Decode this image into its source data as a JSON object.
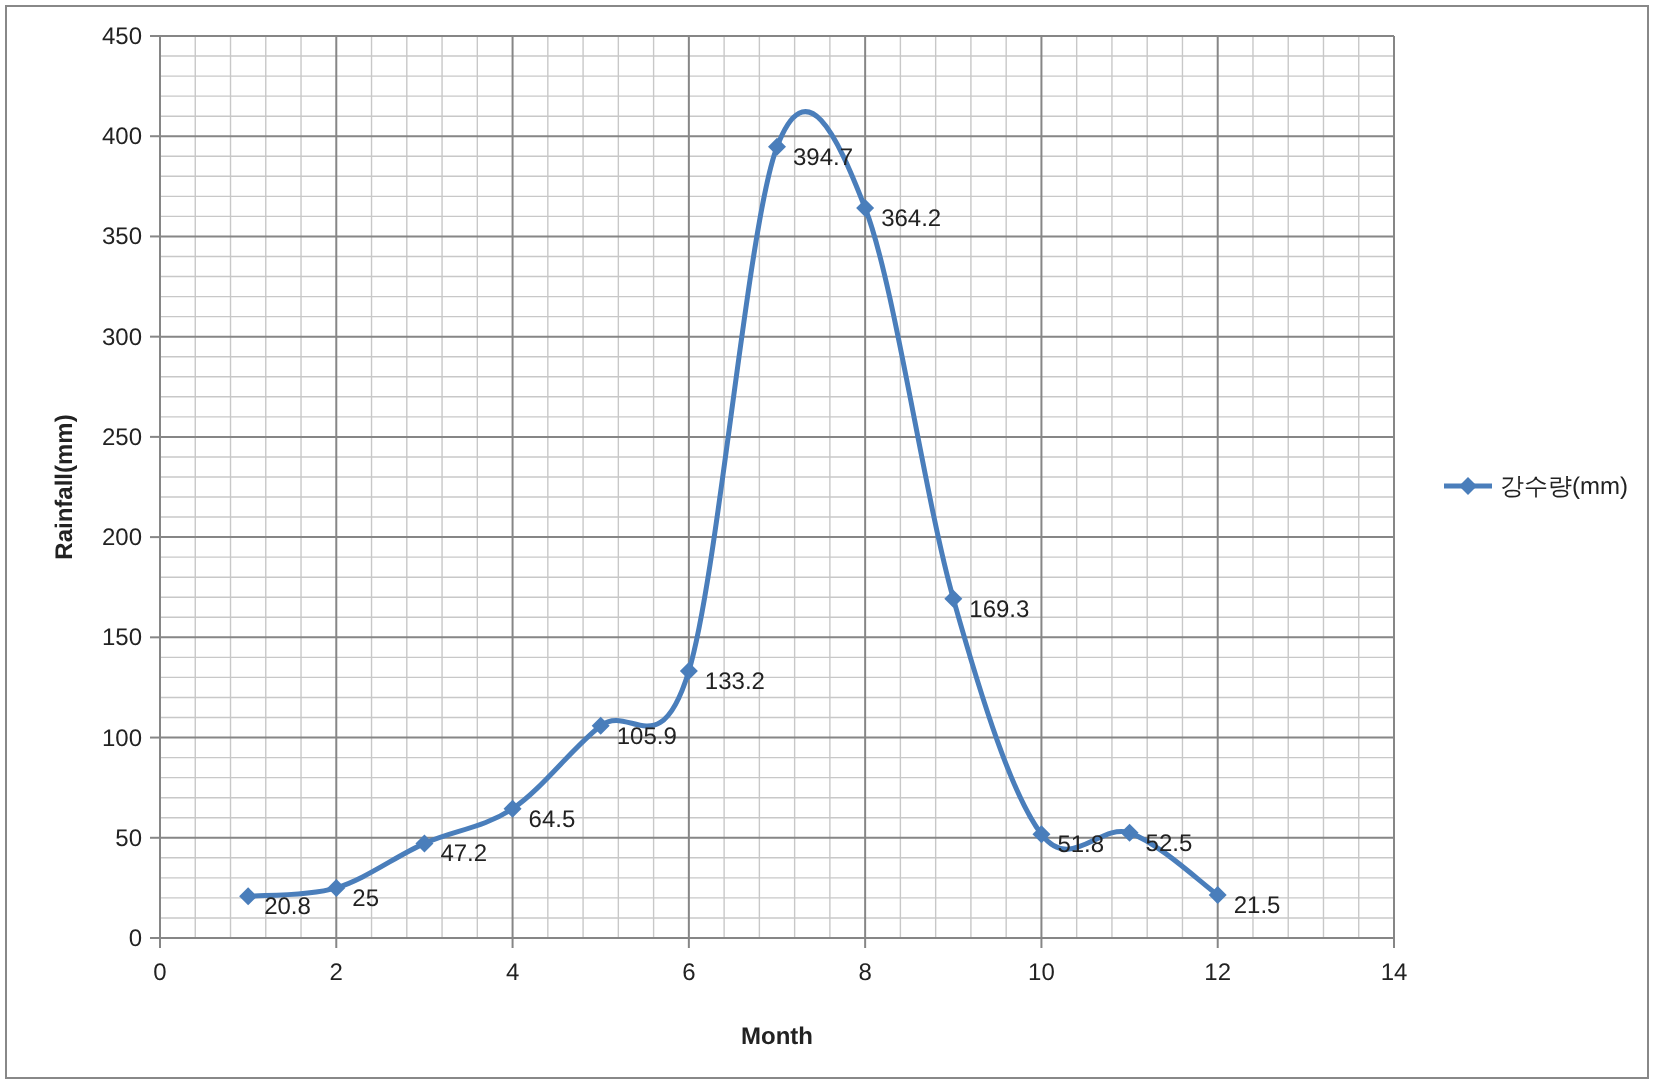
{
  "chart_data": {
    "type": "line",
    "xlabel": "Month",
    "ylabel": "Rainfall(mm)",
    "xlim": [
      0,
      14
    ],
    "xticks": [
      0,
      2,
      4,
      6,
      8,
      10,
      12,
      14
    ],
    "ylim": [
      0,
      450
    ],
    "yticks": [
      0,
      50,
      100,
      150,
      200,
      250,
      300,
      350,
      400,
      450
    ],
    "x": [
      1,
      2,
      3,
      4,
      5,
      6,
      7,
      8,
      9,
      10,
      11,
      12
    ],
    "series": [
      {
        "name": "강수량(mm)",
        "color": "#4a7ebb",
        "values": [
          20.8,
          25,
          47.2,
          64.5,
          105.9,
          133.2,
          394.7,
          364.2,
          169.3,
          51.8,
          52.5,
          21.5
        ]
      }
    ],
    "data_labels": true,
    "grid": true,
    "legend": "right",
    "marker": "diamond",
    "line_style": "solid"
  }
}
